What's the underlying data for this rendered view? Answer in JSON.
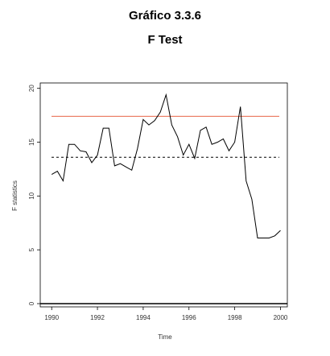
{
  "header": {
    "title": "Gráfico 3.3.6",
    "subtitle": "F Test"
  },
  "chart_data": {
    "type": "line",
    "title": "Gráfico 3.3.6",
    "subtitle": "F Test",
    "xlabel": "Time",
    "ylabel": "F statistics",
    "xlim": [
      1989.5,
      2000.3
    ],
    "ylim": [
      -0.3,
      20.5
    ],
    "x_ticks": [
      1990,
      1992,
      1994,
      1996,
      1998,
      2000
    ],
    "y_ticks": [
      0,
      5,
      10,
      15,
      20
    ],
    "grid": false,
    "series": [
      {
        "x": [
          1990.0,
          1990.25,
          1990.5,
          1990.75,
          1991.0,
          1991.25,
          1991.5,
          1991.75,
          1992.0,
          1992.25,
          1992.5,
          1992.75,
          1993.0,
          1993.25,
          1993.5,
          1993.75,
          1994.0,
          1994.25,
          1994.5,
          1994.75,
          1995.0,
          1995.25,
          1995.5,
          1995.75,
          1996.0,
          1996.25,
          1996.5,
          1996.75,
          1997.0,
          1997.25,
          1997.5,
          1997.75,
          1998.0,
          1998.25,
          1998.5,
          1998.75,
          1999.0,
          1999.25,
          1999.5,
          1999.75,
          2000.0
        ],
        "y": [
          12.0,
          12.3,
          11.4,
          14.8,
          14.8,
          14.2,
          14.1,
          13.1,
          13.8,
          16.3,
          16.3,
          12.8,
          13.0,
          12.7,
          12.4,
          14.4,
          17.1,
          16.6,
          17.0,
          17.8,
          19.4,
          16.6,
          15.5,
          13.8,
          14.8,
          13.5,
          16.1,
          16.4,
          14.8,
          15.0,
          15.3,
          14.2,
          15.0,
          18.3,
          11.4,
          9.7,
          6.1,
          6.1,
          6.1,
          6.3,
          6.8
        ]
      }
    ],
    "reference_lines": [
      {
        "y": 17.4,
        "style": "solid",
        "color": "#e8664a"
      },
      {
        "y": 13.6,
        "style": "dashed",
        "color": "#000000"
      },
      {
        "y": 0,
        "style": "solid",
        "color": "#000000"
      }
    ]
  }
}
